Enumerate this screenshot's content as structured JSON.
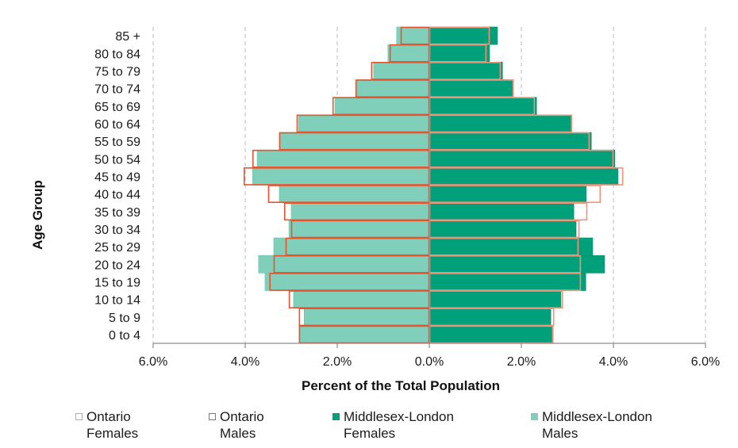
{
  "chart_data": {
    "type": "bar",
    "subtype": "population-pyramid",
    "title": "",
    "xlabel": "Percent of the Total Population",
    "ylabel": "Age Group",
    "xlim": [
      -6.0,
      6.0
    ],
    "x_ticks": [
      -6,
      -4,
      -2,
      0,
      2,
      4,
      6
    ],
    "x_tick_labels": [
      "6.0%",
      "4.0%",
      "2.0%",
      "0.0%",
      "2.0%",
      "4.0%",
      "6.0%"
    ],
    "grid": "vertical dashed",
    "legend_position": "bottom",
    "categories": [
      "0 to 4",
      "5 to 9",
      "10 to 14",
      "15 to 19",
      "20 to 24",
      "25 to 29",
      "30 to 34",
      "35 to 39",
      "40 to 44",
      "45 to 49",
      "50 to 54",
      "55 to 59",
      "60 to 64",
      "65 to 69",
      "70 to 74",
      "75 to 79",
      "80 to 84",
      "85 +"
    ],
    "series": [
      {
        "name": "Middlesex-London Males",
        "side": "left",
        "style": "filled",
        "color": "#7fcfbb",
        "values": [
          2.81,
          2.72,
          2.95,
          3.57,
          3.71,
          3.38,
          3.05,
          3.0,
          3.26,
          3.84,
          3.74,
          3.24,
          2.84,
          2.05,
          1.57,
          1.21,
          0.9,
          0.71
        ]
      },
      {
        "name": "Middlesex-London Females",
        "side": "right",
        "style": "filled",
        "color": "#00a07a",
        "values": [
          2.69,
          2.64,
          2.86,
          3.4,
          3.81,
          3.55,
          3.19,
          3.14,
          3.41,
          4.1,
          4.03,
          3.52,
          3.09,
          2.33,
          1.83,
          1.59,
          1.31,
          1.48
        ]
      },
      {
        "name": "Ontario Males",
        "side": "left",
        "style": "outline",
        "color": "#e8532d",
        "values": [
          2.83,
          2.83,
          3.05,
          3.47,
          3.38,
          3.12,
          3.0,
          3.15,
          3.5,
          4.03,
          3.84,
          3.26,
          2.88,
          2.1,
          1.6,
          1.26,
          0.86,
          0.62
        ]
      },
      {
        "name": "Ontario Females",
        "side": "right",
        "style": "outline",
        "color": "#f4917a",
        "values": [
          2.69,
          2.71,
          2.9,
          3.29,
          3.29,
          3.24,
          3.26,
          3.43,
          3.72,
          4.21,
          4.0,
          3.48,
          3.1,
          2.29,
          1.83,
          1.55,
          1.24,
          1.31
        ]
      }
    ]
  },
  "legend": [
    {
      "line1": "Ontario",
      "line2": "Females",
      "swatch": "outline",
      "color": "#f4917a"
    },
    {
      "line1": "Ontario",
      "line2": "Males",
      "swatch": "outline",
      "color": "#e8532d"
    },
    {
      "line1": "Middlesex-London",
      "line2": "Females",
      "swatch": "filled",
      "color": "#00a07a"
    },
    {
      "line1": "Middlesex-London",
      "line2": "Males",
      "swatch": "filled",
      "color": "#7fcfbb"
    }
  ]
}
